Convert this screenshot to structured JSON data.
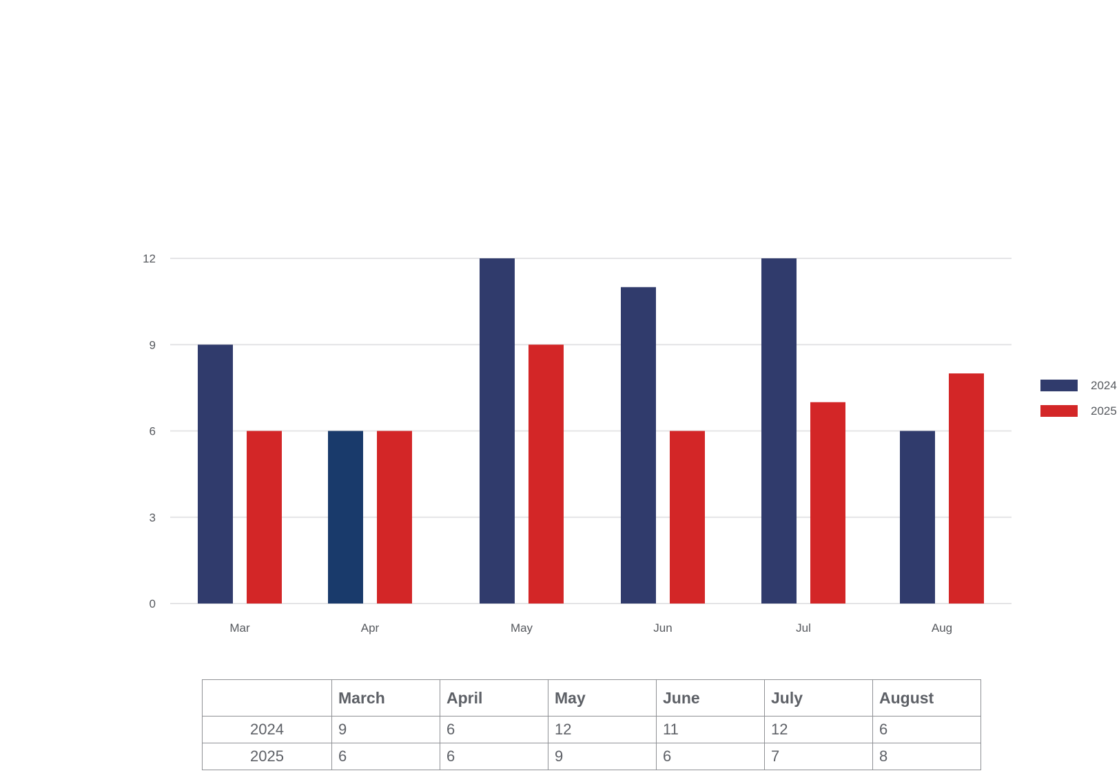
{
  "chart_data": {
    "type": "bar",
    "categories": [
      "Mar",
      "Apr",
      "May",
      "Jun",
      "Jul",
      "Aug"
    ],
    "series": [
      {
        "name": "2024",
        "color": "#303b6c",
        "values": [
          9,
          6,
          12,
          11,
          12,
          6
        ]
      },
      {
        "name": "2025",
        "color": "#d32627",
        "values": [
          6,
          6,
          9,
          6,
          7,
          8
        ]
      }
    ],
    "highlight": {
      "series": 0,
      "index": 1,
      "color": "#193a6b"
    },
    "y_ticks": [
      0,
      3,
      6,
      9,
      12
    ],
    "ylim": [
      0,
      12
    ],
    "grid": true,
    "legend_position": "right"
  },
  "table": {
    "header": [
      "",
      "March",
      "April",
      "May",
      "June",
      "July",
      "August"
    ],
    "rows": [
      {
        "label": "2024",
        "values": [
          "9",
          "6",
          "12",
          "11",
          "12",
          "6"
        ]
      },
      {
        "label": "2025",
        "values": [
          "6",
          "6",
          "9",
          "6",
          "7",
          "8"
        ]
      }
    ]
  }
}
